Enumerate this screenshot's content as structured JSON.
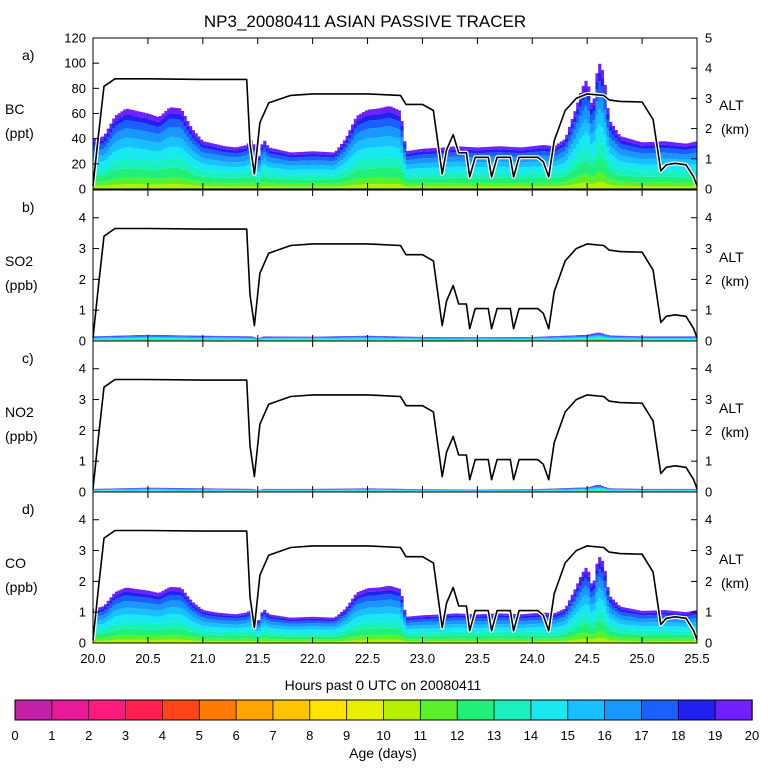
{
  "chart_data": {
    "type": "area",
    "title": "NP3_20080411 ASIAN PASSIVE TRACER",
    "xlabel": "Hours past 0 UTC on 20080411",
    "xlim": [
      20.0,
      25.5
    ],
    "x_ticks": [
      "20.0",
      "20.5",
      "21.0",
      "21.5",
      "22.0",
      "22.5",
      "23.0",
      "23.5",
      "24.0",
      "24.5",
      "25.0",
      "25.5"
    ],
    "panels": [
      {
        "tag": "a)",
        "species": "BC",
        "units": "(ppt)",
        "ylim": [
          0,
          120
        ],
        "y_ticks": [
          "0",
          "20",
          "40",
          "60",
          "80",
          "100",
          "120"
        ],
        "right_label": "ALT",
        "right_units": "(km)",
        "right_ylim": [
          0,
          5
        ],
        "right_ticks": [
          "0",
          "1",
          "2",
          "3",
          "4",
          "5"
        ],
        "total_points": [
          [
            20.0,
            40
          ],
          [
            20.1,
            42
          ],
          [
            20.2,
            58
          ],
          [
            20.3,
            64
          ],
          [
            20.4,
            62
          ],
          [
            20.5,
            60
          ],
          [
            20.6,
            57
          ],
          [
            20.7,
            65
          ],
          [
            20.8,
            64
          ],
          [
            20.9,
            48
          ],
          [
            21.0,
            38
          ],
          [
            21.1,
            36
          ],
          [
            21.2,
            34
          ],
          [
            21.3,
            33
          ],
          [
            21.4,
            35
          ],
          [
            21.45,
            40
          ],
          [
            21.5,
            22
          ],
          [
            21.55,
            40
          ],
          [
            21.6,
            33
          ],
          [
            21.8,
            29
          ],
          [
            22.0,
            30
          ],
          [
            22.2,
            29
          ],
          [
            22.3,
            40
          ],
          [
            22.4,
            58
          ],
          [
            22.5,
            63
          ],
          [
            22.6,
            64
          ],
          [
            22.7,
            66
          ],
          [
            22.8,
            62
          ],
          [
            22.85,
            30
          ],
          [
            23.0,
            32
          ],
          [
            23.2,
            33
          ],
          [
            23.3,
            34
          ],
          [
            23.5,
            33
          ],
          [
            23.7,
            34
          ],
          [
            23.9,
            33
          ],
          [
            24.1,
            35
          ],
          [
            24.2,
            34
          ],
          [
            24.3,
            40
          ],
          [
            24.4,
            65
          ],
          [
            24.45,
            80
          ],
          [
            24.5,
            88
          ],
          [
            24.55,
            62
          ],
          [
            24.6,
            102
          ],
          [
            24.65,
            92
          ],
          [
            24.7,
            55
          ],
          [
            24.8,
            42
          ],
          [
            25.0,
            37
          ],
          [
            25.2,
            38
          ],
          [
            25.4,
            36
          ],
          [
            25.5,
            38
          ]
        ]
      },
      {
        "tag": "b)",
        "species": "SO2",
        "units": "(ppb)",
        "ylim": [
          0,
          4.9
        ],
        "y_ticks": [
          "0",
          "1",
          "2",
          "3",
          "4"
        ],
        "right_label": "ALT",
        "right_units": "(km)",
        "right_ylim": [
          0,
          4.9
        ],
        "right_ticks": [
          "0",
          "1",
          "2",
          "3",
          "4"
        ],
        "total_points": [
          [
            20.0,
            0.15
          ],
          [
            20.5,
            0.2
          ],
          [
            21.0,
            0.17
          ],
          [
            21.45,
            0.15
          ],
          [
            21.5,
            0.08
          ],
          [
            21.55,
            0.15
          ],
          [
            22.0,
            0.14
          ],
          [
            22.5,
            0.17
          ],
          [
            23.0,
            0.13
          ],
          [
            23.5,
            0.12
          ],
          [
            24.0,
            0.13
          ],
          [
            24.5,
            0.2
          ],
          [
            24.6,
            0.28
          ],
          [
            24.7,
            0.18
          ],
          [
            25.0,
            0.15
          ],
          [
            25.5,
            0.15
          ]
        ]
      },
      {
        "tag": "c)",
        "species": "NO2",
        "units": "(ppb)",
        "ylim": [
          0,
          4.9
        ],
        "y_ticks": [
          "0",
          "1",
          "2",
          "3",
          "4"
        ],
        "right_label": "ALT",
        "right_units": "(km)",
        "right_ylim": [
          0,
          4.9
        ],
        "right_ticks": [
          "0",
          "1",
          "2",
          "3",
          "4"
        ],
        "total_points": [
          [
            20.0,
            0.1
          ],
          [
            20.5,
            0.14
          ],
          [
            21.0,
            0.12
          ],
          [
            21.45,
            0.1
          ],
          [
            21.5,
            0.05
          ],
          [
            21.55,
            0.1
          ],
          [
            22.0,
            0.1
          ],
          [
            22.5,
            0.12
          ],
          [
            23.0,
            0.09
          ],
          [
            23.5,
            0.08
          ],
          [
            24.0,
            0.09
          ],
          [
            24.5,
            0.15
          ],
          [
            24.6,
            0.24
          ],
          [
            24.7,
            0.12
          ],
          [
            25.0,
            0.1
          ],
          [
            25.5,
            0.1
          ]
        ]
      },
      {
        "tag": "d)",
        "species": "CO",
        "units": "(ppb)",
        "ylim": [
          0,
          4.9
        ],
        "y_ticks": [
          "0",
          "1",
          "2",
          "3",
          "4"
        ],
        "right_label": "ALT",
        "right_units": "(km)",
        "right_ylim": [
          0,
          4.9
        ],
        "right_ticks": [
          "0",
          "1",
          "2",
          "3",
          "4"
        ],
        "total_points": [
          [
            20.0,
            1.1
          ],
          [
            20.1,
            1.2
          ],
          [
            20.2,
            1.65
          ],
          [
            20.3,
            1.8
          ],
          [
            20.4,
            1.75
          ],
          [
            20.5,
            1.7
          ],
          [
            20.6,
            1.62
          ],
          [
            20.7,
            1.82
          ],
          [
            20.8,
            1.8
          ],
          [
            20.9,
            1.35
          ],
          [
            21.0,
            1.07
          ],
          [
            21.1,
            1.0
          ],
          [
            21.2,
            0.96
          ],
          [
            21.3,
            0.93
          ],
          [
            21.4,
            0.99
          ],
          [
            21.45,
            1.12
          ],
          [
            21.5,
            0.62
          ],
          [
            21.55,
            1.12
          ],
          [
            21.6,
            0.93
          ],
          [
            21.8,
            0.82
          ],
          [
            22.0,
            0.85
          ],
          [
            22.2,
            0.82
          ],
          [
            22.3,
            1.12
          ],
          [
            22.4,
            1.63
          ],
          [
            22.5,
            1.78
          ],
          [
            22.6,
            1.8
          ],
          [
            22.7,
            1.86
          ],
          [
            22.8,
            1.75
          ],
          [
            22.85,
            0.85
          ],
          [
            23.0,
            0.9
          ],
          [
            23.2,
            0.93
          ],
          [
            23.3,
            0.96
          ],
          [
            23.5,
            0.93
          ],
          [
            23.7,
            0.96
          ],
          [
            23.9,
            0.93
          ],
          [
            24.1,
            0.99
          ],
          [
            24.2,
            0.96
          ],
          [
            24.3,
            1.12
          ],
          [
            24.4,
            1.83
          ],
          [
            24.45,
            2.25
          ],
          [
            24.5,
            2.5
          ],
          [
            24.55,
            1.75
          ],
          [
            24.6,
            2.85
          ],
          [
            24.65,
            2.6
          ],
          [
            24.7,
            1.55
          ],
          [
            24.8,
            1.18
          ],
          [
            25.0,
            1.04
          ],
          [
            25.2,
            1.07
          ],
          [
            25.4,
            1.0
          ],
          [
            25.5,
            1.07
          ]
        ]
      }
    ],
    "altitude_km": [
      [
        20.0,
        0.1
      ],
      [
        20.05,
        1.8
      ],
      [
        20.1,
        3.4
      ],
      [
        20.2,
        3.65
      ],
      [
        20.5,
        3.65
      ],
      [
        21.0,
        3.63
      ],
      [
        21.4,
        3.63
      ],
      [
        21.43,
        1.5
      ],
      [
        21.47,
        0.5
      ],
      [
        21.52,
        2.2
      ],
      [
        21.6,
        2.85
      ],
      [
        21.8,
        3.1
      ],
      [
        22.0,
        3.15
      ],
      [
        22.5,
        3.15
      ],
      [
        22.8,
        3.1
      ],
      [
        22.85,
        2.8
      ],
      [
        23.0,
        2.8
      ],
      [
        23.1,
        2.6
      ],
      [
        23.18,
        0.5
      ],
      [
        23.22,
        1.3
      ],
      [
        23.28,
        1.8
      ],
      [
        23.33,
        1.2
      ],
      [
        23.4,
        1.2
      ],
      [
        23.43,
        0.4
      ],
      [
        23.48,
        1.05
      ],
      [
        23.6,
        1.05
      ],
      [
        23.63,
        0.4
      ],
      [
        23.68,
        1.05
      ],
      [
        23.8,
        1.05
      ],
      [
        23.83,
        0.4
      ],
      [
        23.88,
        1.05
      ],
      [
        24.05,
        1.05
      ],
      [
        24.1,
        0.9
      ],
      [
        24.15,
        0.4
      ],
      [
        24.2,
        1.6
      ],
      [
        24.3,
        2.6
      ],
      [
        24.4,
        3.0
      ],
      [
        24.5,
        3.15
      ],
      [
        24.65,
        3.1
      ],
      [
        24.7,
        2.95
      ],
      [
        24.8,
        2.9
      ],
      [
        25.0,
        2.88
      ],
      [
        25.1,
        2.3
      ],
      [
        25.17,
        0.6
      ],
      [
        25.22,
        0.8
      ],
      [
        25.3,
        0.85
      ],
      [
        25.4,
        0.8
      ],
      [
        25.47,
        0.4
      ],
      [
        25.5,
        0.1
      ]
    ],
    "colorbar": {
      "label": "Age (days)",
      "ticks": [
        "0",
        "1",
        "2",
        "3",
        "4",
        "5",
        "6",
        "7",
        "8",
        "9",
        "10",
        "11",
        "12",
        "13",
        "14",
        "15",
        "16",
        "17",
        "18",
        "19",
        "20"
      ],
      "colors": [
        "#8b0a8b",
        "#c41fa8",
        "#e81a9a",
        "#ff1a80",
        "#ff2050",
        "#ff4418",
        "#ff7a00",
        "#ffa600",
        "#ffc400",
        "#ffe400",
        "#e6f000",
        "#b4f000",
        "#5cf02a",
        "#20f078",
        "#18f0c0",
        "#18e8f0",
        "#18c0ff",
        "#1898ff",
        "#1a60ff",
        "#2020f0",
        "#7020ff"
      ]
    }
  }
}
